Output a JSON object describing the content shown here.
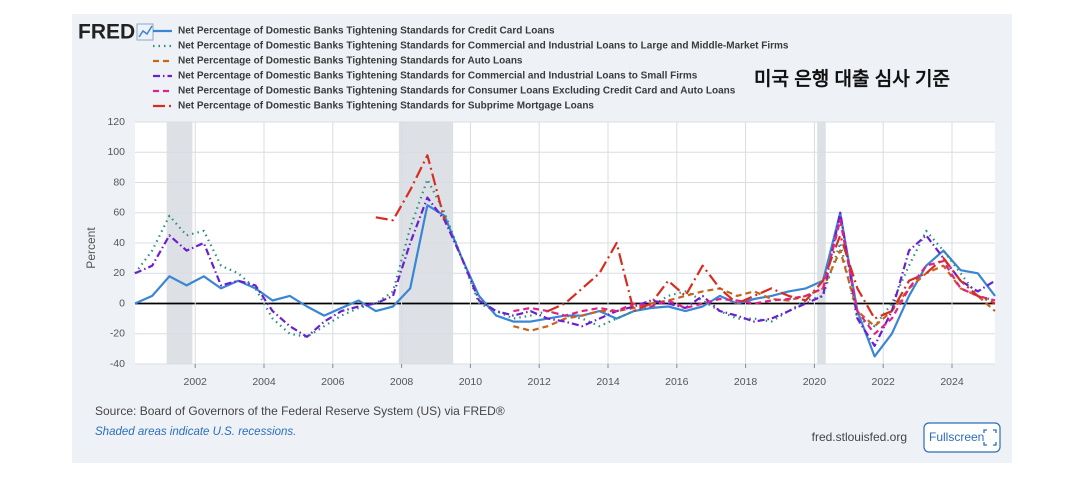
{
  "logo": "FRED",
  "annotation": "미국 은행 대출 심사 기준",
  "source": "Source: Board of Governors of the Federal Reserve System (US) via FRED®",
  "note": "Shaded areas indicate U.S. recessions.",
  "site": "fred.stlouisfed.org",
  "button": "Fullscreen",
  "chart_data": {
    "type": "line",
    "ylabel": "Percent",
    "xlim": [
      2000.25,
      2025.25
    ],
    "xticks": [
      2002,
      2004,
      2006,
      2008,
      2010,
      2012,
      2014,
      2016,
      2018,
      2020,
      2022,
      2024
    ],
    "ylim": [
      -40,
      120
    ],
    "yticks": [
      -40,
      -20,
      0,
      20,
      40,
      60,
      80,
      100,
      120
    ],
    "grid": true,
    "recessions": [
      [
        2001.17,
        2001.92
      ],
      [
        2007.92,
        2009.5
      ],
      [
        2020.08,
        2020.33
      ]
    ],
    "x": [
      2000.25,
      2000.75,
      2001.25,
      2001.75,
      2002.25,
      2002.75,
      2003.25,
      2003.75,
      2004.25,
      2004.75,
      2005.25,
      2005.75,
      2006.25,
      2006.75,
      2007.25,
      2007.75,
      2008.25,
      2008.75,
      2009.25,
      2009.75,
      2010.25,
      2010.75,
      2011.25,
      2011.75,
      2012.25,
      2012.75,
      2013.25,
      2013.75,
      2014.25,
      2014.75,
      2015.25,
      2015.75,
      2016.25,
      2016.75,
      2017.25,
      2017.75,
      2018.25,
      2018.75,
      2019.25,
      2019.75,
      2020.25,
      2020.75,
      2021.25,
      2021.75,
      2022.25,
      2022.75,
      2023.25,
      2023.75,
      2024.25,
      2024.75,
      2025.25
    ],
    "series": [
      {
        "name": "Net Percentage of Domestic Banks Tightening Standards for Credit Card Loans",
        "color": "#3a86d4",
        "dash": "solid",
        "values": [
          0,
          5,
          18,
          12,
          18,
          10,
          15,
          10,
          2,
          5,
          -2,
          -8,
          -3,
          2,
          -5,
          -2,
          10,
          65,
          58,
          30,
          5,
          -8,
          -12,
          -12,
          -10,
          -8,
          -8,
          -5,
          -10,
          -5,
          -3,
          -2,
          -5,
          -2,
          5,
          0,
          3,
          5,
          8,
          10,
          15,
          60,
          -5,
          -35,
          -20,
          5,
          25,
          35,
          22,
          20,
          5
        ]
      },
      {
        "name": "Net Percentage of Domestic Banks Tightening Standards for Commercial and Industrial Loans to Large and Middle-Market Firms",
        "color": "#2a9079",
        "dash": "dotted",
        "values": [
          20,
          35,
          58,
          45,
          48,
          25,
          20,
          10,
          -10,
          -20,
          -22,
          -15,
          -8,
          -3,
          0,
          8,
          50,
          82,
          60,
          30,
          0,
          -5,
          -10,
          -8,
          -5,
          -8,
          -10,
          -15,
          -10,
          -5,
          -2,
          5,
          8,
          2,
          -5,
          -10,
          -10,
          -12,
          -5,
          2,
          5,
          40,
          -10,
          -15,
          0,
          25,
          48,
          35,
          20,
          5,
          2
        ]
      },
      {
        "name": "Net Percentage of Domestic Banks Tightening Standards for Auto Loans",
        "color": "#c8641a",
        "dash": "dashed",
        "values": [
          null,
          null,
          null,
          null,
          null,
          null,
          null,
          null,
          null,
          null,
          null,
          null,
          null,
          null,
          null,
          null,
          null,
          null,
          null,
          null,
          null,
          null,
          -15,
          -18,
          -15,
          -10,
          -8,
          -5,
          -5,
          -3,
          0,
          2,
          5,
          8,
          10,
          5,
          8,
          3,
          2,
          5,
          10,
          35,
          -5,
          -15,
          -5,
          10,
          20,
          25,
          10,
          5,
          -5
        ]
      },
      {
        "name": "Net Percentage of Domestic Banks Tightening Standards for Commercial and Industrial Loans to Small Firms",
        "color": "#6a1fd1",
        "dash": "dashdot",
        "values": [
          20,
          25,
          45,
          35,
          40,
          12,
          15,
          12,
          -5,
          -15,
          -22,
          -12,
          -5,
          -2,
          0,
          5,
          40,
          70,
          55,
          30,
          2,
          -5,
          -8,
          -5,
          -10,
          -12,
          -15,
          -10,
          -5,
          -2,
          2,
          0,
          -3,
          5,
          -5,
          -8,
          -12,
          -10,
          -5,
          0,
          5,
          60,
          -10,
          -28,
          -5,
          35,
          45,
          30,
          15,
          8,
          15
        ]
      },
      {
        "name": "Net Percentage of Domestic Banks Tightening Standards for Consumer Loans Excluding Credit Card and Auto Loans",
        "color": "#e0218a",
        "dash": "dashed",
        "values": [
          null,
          null,
          null,
          null,
          null,
          null,
          null,
          null,
          null,
          null,
          null,
          null,
          null,
          null,
          null,
          null,
          null,
          null,
          null,
          null,
          null,
          null,
          -5,
          -3,
          -5,
          -8,
          -5,
          -3,
          -5,
          0,
          -2,
          2,
          -3,
          0,
          3,
          2,
          0,
          2,
          3,
          5,
          10,
          55,
          -5,
          -20,
          -10,
          10,
          25,
          28,
          10,
          5,
          2
        ]
      },
      {
        "name": "Net Percentage of Domestic Banks Tightening Standards for Subprime Mortgage Loans",
        "color": "#d62d20",
        "dash": "longdashdot",
        "values": [
          null,
          null,
          null,
          null,
          null,
          null,
          null,
          null,
          null,
          null,
          null,
          null,
          null,
          null,
          57,
          55,
          75,
          98,
          55,
          null,
          null,
          null,
          null,
          null,
          -5,
          0,
          10,
          20,
          40,
          -5,
          0,
          15,
          5,
          25,
          10,
          0,
          5,
          10,
          5,
          2,
          15,
          45,
          10,
          -10,
          -5,
          15,
          20,
          30,
          15,
          5,
          0
        ]
      }
    ]
  }
}
